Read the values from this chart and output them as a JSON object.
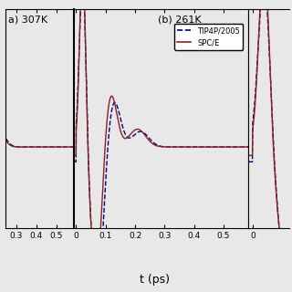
{
  "title_a": "a) 307K",
  "title_b": "(b) 261K",
  "xlabel": "t (ps)",
  "spc_color": "#8B2020",
  "tip_color": "#000080",
  "legend_labels": [
    "TIP4P/2005",
    "SPC/E"
  ],
  "bg_color": "#e8e8e8"
}
